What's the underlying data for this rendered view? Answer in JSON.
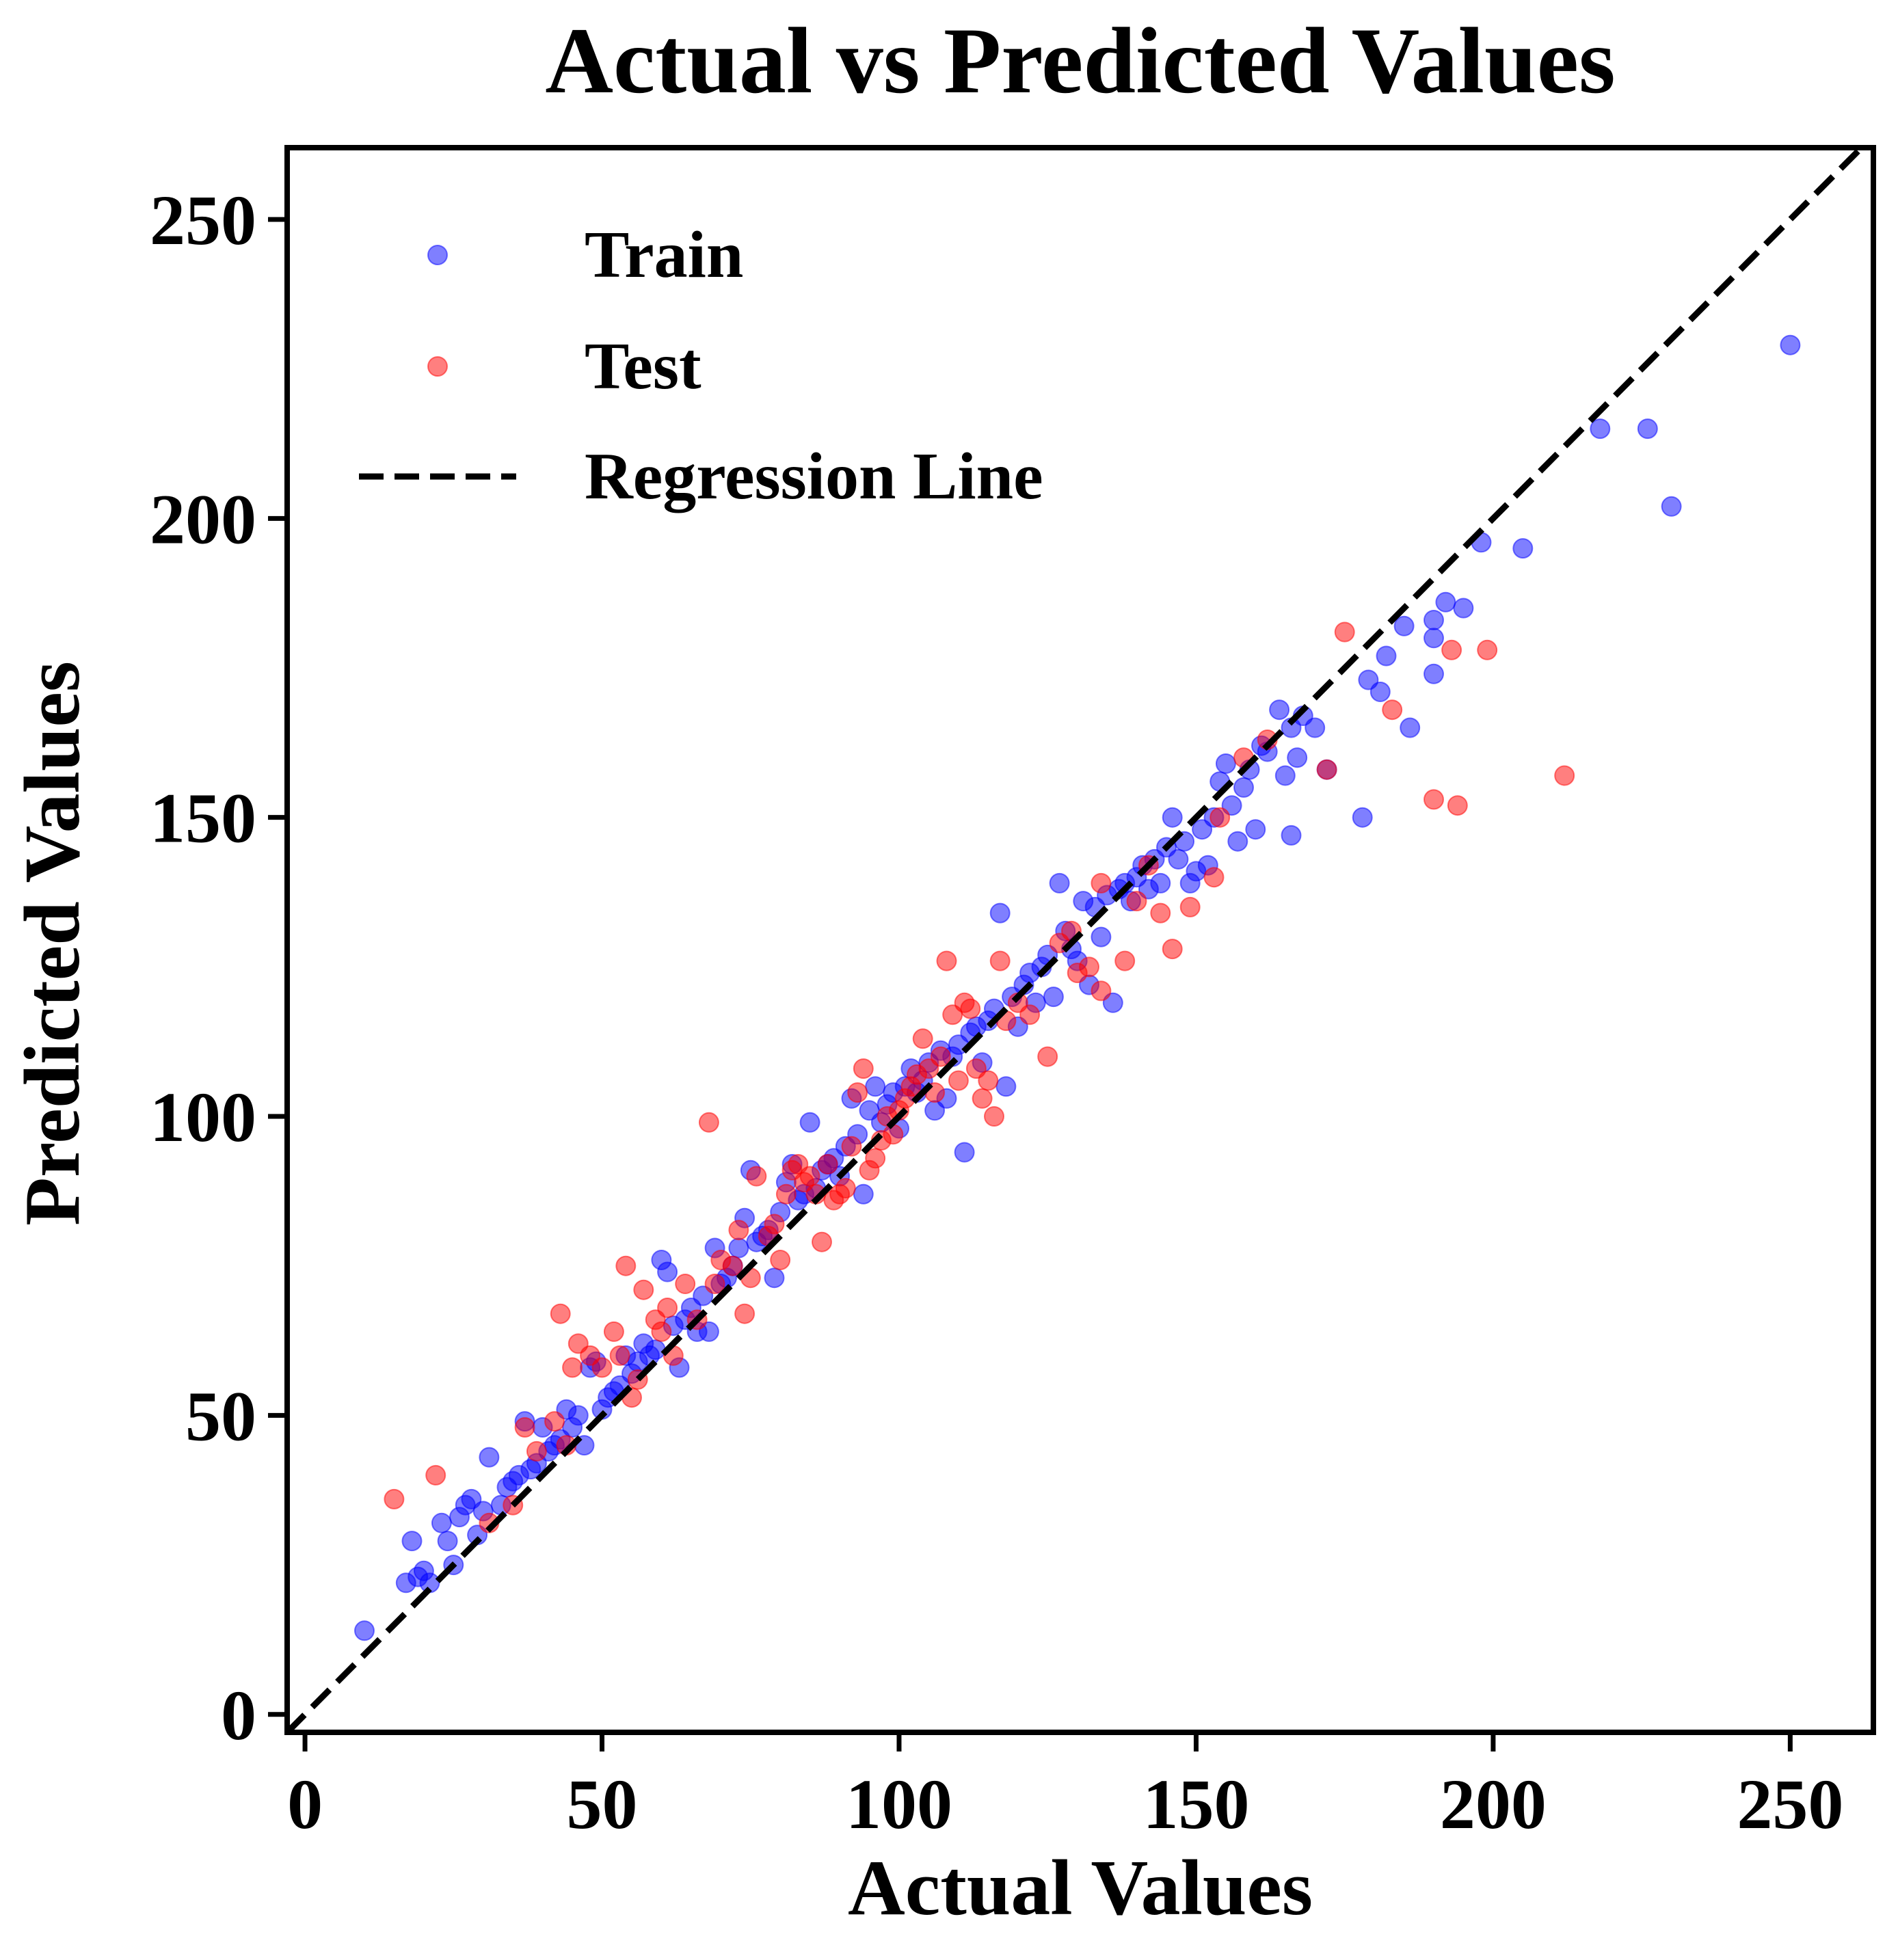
{
  "chart_data": {
    "type": "scatter",
    "title": "Actual vs Predicted Values",
    "xlabel": "Actual Values",
    "ylabel": "Predicted Values",
    "xlim": [
      -3,
      264
    ],
    "ylim": [
      -3,
      262
    ],
    "xticks": [
      0,
      50,
      100,
      150,
      200,
      250
    ],
    "yticks": [
      0,
      50,
      100,
      150,
      200,
      250
    ],
    "xtick_labels": [
      "0",
      "50",
      "100",
      "150",
      "200",
      "250"
    ],
    "ytick_labels": [
      "0",
      "50",
      "100",
      "150",
      "200",
      "250"
    ],
    "grid": false,
    "legend_position": "upper-left",
    "regression_line": {
      "name": "Regression Line",
      "style": "dashed",
      "color": "#000000",
      "x": [
        -3,
        264
      ],
      "y": [
        -3,
        264
      ]
    },
    "series": [
      {
        "name": "Train",
        "color": "#0000ff",
        "opacity": 0.5,
        "points": [
          [
            10,
            14
          ],
          [
            17,
            22
          ],
          [
            18,
            29
          ],
          [
            19,
            23
          ],
          [
            20,
            24
          ],
          [
            21,
            22
          ],
          [
            23,
            32
          ],
          [
            24,
            29
          ],
          [
            25,
            25
          ],
          [
            26,
            33
          ],
          [
            27,
            35
          ],
          [
            28,
            36
          ],
          [
            29,
            30
          ],
          [
            30,
            34
          ],
          [
            31,
            43
          ],
          [
            33,
            35
          ],
          [
            34,
            38
          ],
          [
            35,
            39
          ],
          [
            36,
            40
          ],
          [
            37,
            49
          ],
          [
            38,
            41
          ],
          [
            39,
            42
          ],
          [
            40,
            48
          ],
          [
            41,
            44
          ],
          [
            42,
            45
          ],
          [
            43,
            46
          ],
          [
            44,
            51
          ],
          [
            45,
            48
          ],
          [
            46,
            50
          ],
          [
            47,
            45
          ],
          [
            48,
            58
          ],
          [
            49,
            59
          ],
          [
            50,
            51
          ],
          [
            51,
            53
          ],
          [
            52,
            54
          ],
          [
            53,
            55
          ],
          [
            54,
            60
          ],
          [
            55,
            57
          ],
          [
            56,
            59
          ],
          [
            57,
            62
          ],
          [
            58,
            60
          ],
          [
            59,
            61
          ],
          [
            60,
            76
          ],
          [
            61,
            74
          ],
          [
            62,
            65
          ],
          [
            63,
            58
          ],
          [
            64,
            66
          ],
          [
            65,
            68
          ],
          [
            66,
            64
          ],
          [
            67,
            70
          ],
          [
            68,
            64
          ],
          [
            69,
            78
          ],
          [
            70,
            72
          ],
          [
            71,
            73
          ],
          [
            72,
            75
          ],
          [
            73,
            78
          ],
          [
            74,
            83
          ],
          [
            75,
            91
          ],
          [
            76,
            79
          ],
          [
            77,
            80
          ],
          [
            78,
            81
          ],
          [
            79,
            73
          ],
          [
            80,
            84
          ],
          [
            81,
            89
          ],
          [
            82,
            92
          ],
          [
            83,
            86
          ],
          [
            84,
            87
          ],
          [
            85,
            99
          ],
          [
            86,
            88
          ],
          [
            87,
            91
          ],
          [
            88,
            92
          ],
          [
            89,
            93
          ],
          [
            90,
            90
          ],
          [
            91,
            95
          ],
          [
            92,
            103
          ],
          [
            93,
            97
          ],
          [
            94,
            87
          ],
          [
            95,
            101
          ],
          [
            96,
            105
          ],
          [
            97,
            99
          ],
          [
            98,
            102
          ],
          [
            99,
            104
          ],
          [
            100,
            98
          ],
          [
            101,
            105
          ],
          [
            102,
            108
          ],
          [
            103,
            104
          ],
          [
            104,
            106
          ],
          [
            105,
            109
          ],
          [
            106,
            101
          ],
          [
            107,
            111
          ],
          [
            108,
            103
          ],
          [
            109,
            110
          ],
          [
            110,
            112
          ],
          [
            111,
            94
          ],
          [
            112,
            114
          ],
          [
            113,
            115
          ],
          [
            114,
            109
          ],
          [
            115,
            116
          ],
          [
            116,
            118
          ],
          [
            117,
            134
          ],
          [
            118,
            105
          ],
          [
            119,
            120
          ],
          [
            120,
            115
          ],
          [
            121,
            122
          ],
          [
            122,
            124
          ],
          [
            123,
            119
          ],
          [
            124,
            125
          ],
          [
            125,
            127
          ],
          [
            126,
            120
          ],
          [
            127,
            139
          ],
          [
            128,
            131
          ],
          [
            129,
            128
          ],
          [
            130,
            126
          ],
          [
            131,
            136
          ],
          [
            132,
            122
          ],
          [
            133,
            135
          ],
          [
            134,
            130
          ],
          [
            135,
            137
          ],
          [
            136,
            119
          ],
          [
            137,
            138
          ],
          [
            138,
            139
          ],
          [
            139,
            136
          ],
          [
            140,
            140
          ],
          [
            141,
            142
          ],
          [
            142,
            138
          ],
          [
            143,
            143
          ],
          [
            144,
            139
          ],
          [
            145,
            145
          ],
          [
            146,
            150
          ],
          [
            147,
            143
          ],
          [
            148,
            146
          ],
          [
            149,
            139
          ],
          [
            150,
            141
          ],
          [
            151,
            148
          ],
          [
            152,
            142
          ],
          [
            153,
            150
          ],
          [
            154,
            156
          ],
          [
            155,
            159
          ],
          [
            156,
            152
          ],
          [
            157,
            146
          ],
          [
            158,
            155
          ],
          [
            159,
            158
          ],
          [
            160,
            148
          ],
          [
            161,
            162
          ],
          [
            162,
            161
          ],
          [
            164,
            168
          ],
          [
            165,
            157
          ],
          [
            166,
            165
          ],
          [
            166,
            147
          ],
          [
            167,
            160
          ],
          [
            168,
            167
          ],
          [
            170,
            165
          ],
          [
            172,
            158
          ],
          [
            178,
            150
          ],
          [
            179,
            173
          ],
          [
            181,
            171
          ],
          [
            182,
            177
          ],
          [
            185,
            182
          ],
          [
            186,
            165
          ],
          [
            190,
            174
          ],
          [
            190,
            180
          ],
          [
            190,
            183
          ],
          [
            192,
            186
          ],
          [
            195,
            185
          ],
          [
            198,
            196
          ],
          [
            205,
            195
          ],
          [
            218,
            215
          ],
          [
            226,
            215
          ],
          [
            230,
            202
          ],
          [
            250,
            229
          ]
        ]
      },
      {
        "name": "Test",
        "color": "#ff0000",
        "opacity": 0.5,
        "points": [
          [
            15,
            36
          ],
          [
            22,
            40
          ],
          [
            31,
            32
          ],
          [
            35,
            35
          ],
          [
            37,
            48
          ],
          [
            39,
            44
          ],
          [
            42,
            49
          ],
          [
            43,
            67
          ],
          [
            44,
            45
          ],
          [
            45,
            58
          ],
          [
            46,
            62
          ],
          [
            48,
            60
          ],
          [
            50,
            58
          ],
          [
            52,
            64
          ],
          [
            53,
            60
          ],
          [
            54,
            75
          ],
          [
            55,
            53
          ],
          [
            56,
            56
          ],
          [
            57,
            71
          ],
          [
            59,
            66
          ],
          [
            60,
            64
          ],
          [
            61,
            68
          ],
          [
            62,
            60
          ],
          [
            64,
            72
          ],
          [
            66,
            66
          ],
          [
            68,
            99
          ],
          [
            69,
            72
          ],
          [
            70,
            76
          ],
          [
            72,
            75
          ],
          [
            73,
            81
          ],
          [
            74,
            67
          ],
          [
            75,
            73
          ],
          [
            76,
            90
          ],
          [
            78,
            80
          ],
          [
            79,
            82
          ],
          [
            80,
            76
          ],
          [
            81,
            87
          ],
          [
            82,
            91
          ],
          [
            83,
            92
          ],
          [
            84,
            89
          ],
          [
            85,
            90
          ],
          [
            86,
            87
          ],
          [
            87,
            79
          ],
          [
            88,
            92
          ],
          [
            89,
            86
          ],
          [
            90,
            87
          ],
          [
            91,
            88
          ],
          [
            92,
            95
          ],
          [
            93,
            104
          ],
          [
            94,
            108
          ],
          [
            95,
            91
          ],
          [
            96,
            93
          ],
          [
            97,
            96
          ],
          [
            98,
            100
          ],
          [
            99,
            97
          ],
          [
            100,
            101
          ],
          [
            101,
            103
          ],
          [
            102,
            105
          ],
          [
            103,
            107
          ],
          [
            104,
            113
          ],
          [
            105,
            108
          ],
          [
            106,
            104
          ],
          [
            107,
            110
          ],
          [
            108,
            126
          ],
          [
            109,
            117
          ],
          [
            110,
            106
          ],
          [
            111,
            119
          ],
          [
            112,
            118
          ],
          [
            113,
            108
          ],
          [
            114,
            103
          ],
          [
            115,
            106
          ],
          [
            116,
            100
          ],
          [
            117,
            126
          ],
          [
            118,
            116
          ],
          [
            120,
            119
          ],
          [
            122,
            117
          ],
          [
            125,
            110
          ],
          [
            127,
            129
          ],
          [
            129,
            131
          ],
          [
            130,
            124
          ],
          [
            132,
            125
          ],
          [
            134,
            121
          ],
          [
            134,
            139
          ],
          [
            138,
            126
          ],
          [
            140,
            136
          ],
          [
            142,
            142
          ],
          [
            144,
            134
          ],
          [
            146,
            128
          ],
          [
            149,
            135
          ],
          [
            153,
            140
          ],
          [
            154,
            150
          ],
          [
            158,
            160
          ],
          [
            162,
            163
          ],
          [
            172,
            158
          ],
          [
            175,
            181
          ],
          [
            183,
            168
          ],
          [
            190,
            153
          ],
          [
            193,
            178
          ],
          [
            194,
            152
          ],
          [
            199,
            178
          ],
          [
            212,
            157
          ]
        ]
      }
    ],
    "legend": [
      {
        "label": "Train",
        "marker": "circle",
        "color": "#0000ff"
      },
      {
        "label": "Test",
        "marker": "circle",
        "color": "#ff0000"
      },
      {
        "label": "Regression Line",
        "marker": "dashed-line",
        "color": "#000000"
      }
    ]
  }
}
